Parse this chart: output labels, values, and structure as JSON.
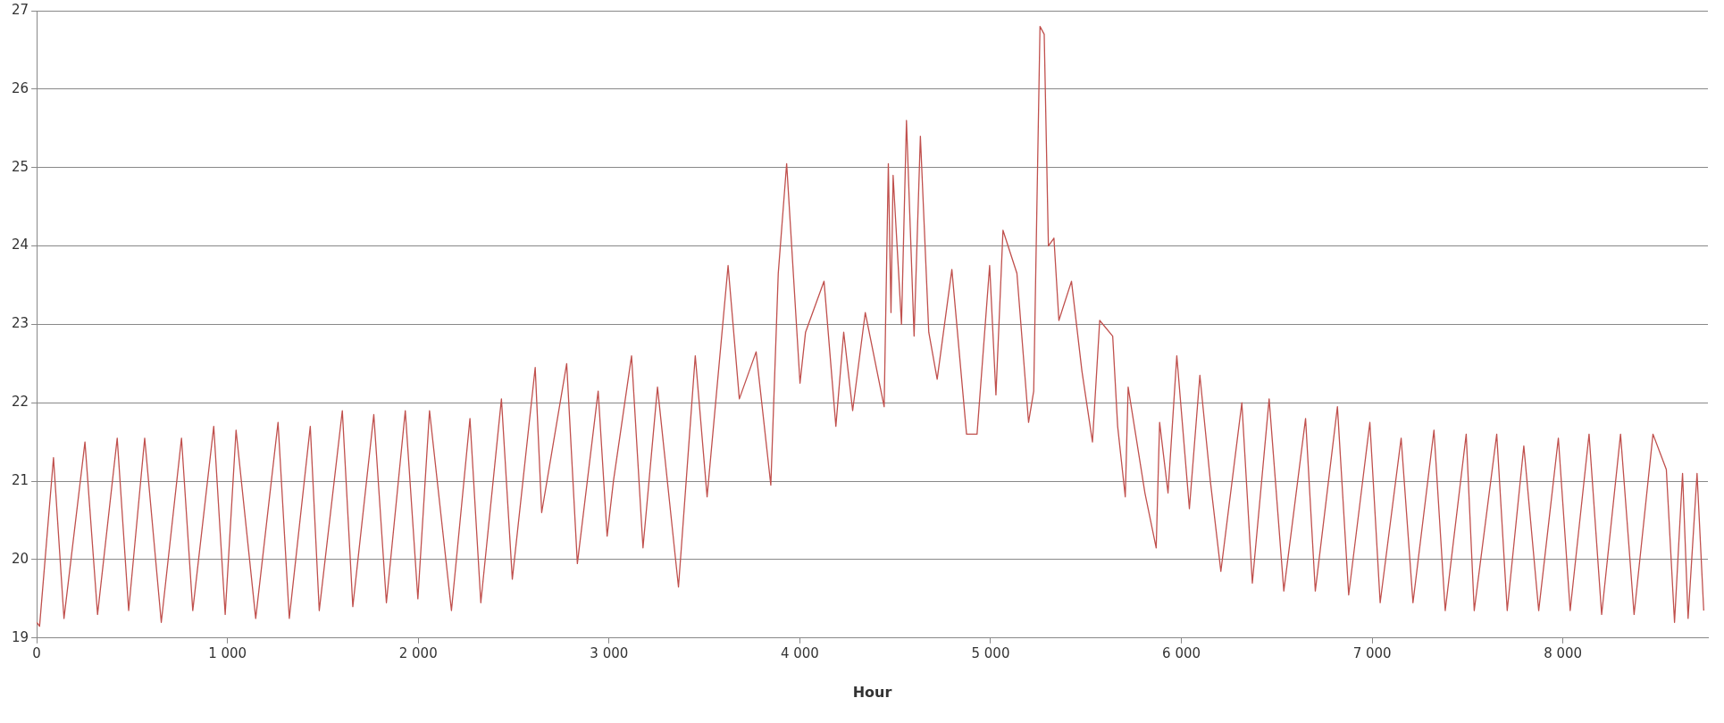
{
  "chart_data": {
    "type": "line",
    "xlabel": "Hour",
    "xlim": [
      0,
      8760
    ],
    "xticks": [
      0,
      {
        "value": 1000,
        "label": "1 000"
      },
      {
        "value": 2000,
        "label": "2 000"
      },
      {
        "value": 3000,
        "label": "3 000"
      },
      {
        "value": 4000,
        "label": "4 000"
      },
      {
        "value": 5000,
        "label": "5 000"
      },
      {
        "value": 6000,
        "label": "6 000"
      },
      {
        "value": 7000,
        "label": "7 000"
      },
      {
        "value": 8000,
        "label": "8 000"
      }
    ],
    "ylim": [
      19,
      27
    ],
    "yticks": [
      19,
      20,
      21,
      22,
      23,
      24,
      25,
      26,
      27
    ],
    "grid": "y",
    "legend": false,
    "marker": "none",
    "line_style": "solid",
    "series": [
      {
        "color": "#c0504d",
        "x": [
          0,
          15,
          88,
          143,
          253,
          319,
          422,
          482,
          566,
          653,
          759,
          818,
          928,
          988,
          1045,
          1148,
          1265,
          1324,
          1434,
          1481,
          1602,
          1657,
          1767,
          1833,
          1932,
          1998,
          2059,
          2174,
          2271,
          2328,
          2436,
          2493,
          2613,
          2647,
          2778,
          2834,
          2943,
          2990,
          3023,
          3118,
          3178,
          3254,
          3364,
          3452,
          3514,
          3624,
          3683,
          3771,
          3848,
          3887,
          3931,
          4001,
          4030,
          4127,
          4189,
          4230,
          4277,
          4343,
          4442,
          4464,
          4478,
          4489,
          4533,
          4559,
          4599,
          4632,
          4676,
          4720,
          4797,
          4874,
          4929,
          4995,
          5028,
          5065,
          5138,
          5199,
          5226,
          5259,
          5281,
          5303,
          5332,
          5358,
          5424,
          5479,
          5534,
          5572,
          5640,
          5666,
          5706,
          5721,
          5809,
          5868,
          5886,
          5930,
          5976,
          6042,
          6097,
          6152,
          6207,
          6317,
          6372,
          6460,
          6537,
          6651,
          6702,
          6818,
          6877,
          6988,
          7042,
          7152,
          7214,
          7324,
          7383,
          7493,
          7535,
          7653,
          7708,
          7795,
          7873,
          7976,
          8038,
          8137,
          8203,
          8302,
          8373,
          8472,
          8542,
          8585,
          8627,
          8656,
          8703,
          8738
        ],
        "values": [
          19.2,
          19.15,
          21.3,
          19.25,
          21.5,
          19.3,
          21.55,
          19.35,
          21.55,
          19.2,
          21.55,
          19.35,
          21.7,
          19.3,
          21.65,
          19.25,
          21.75,
          19.25,
          21.7,
          19.35,
          21.9,
          19.4,
          21.85,
          19.45,
          21.9,
          19.5,
          21.9,
          19.35,
          21.8,
          19.45,
          22.05,
          19.75,
          22.45,
          20.6,
          22.5,
          19.95,
          22.15,
          20.3,
          21.0,
          22.6,
          20.15,
          22.2,
          19.65,
          22.6,
          20.8,
          23.75,
          22.05,
          22.65,
          20.95,
          23.65,
          25.05,
          22.25,
          22.9,
          23.55,
          21.7,
          22.9,
          21.9,
          23.15,
          21.95,
          25.05,
          23.15,
          24.9,
          23.0,
          25.6,
          22.85,
          25.4,
          22.9,
          22.3,
          23.7,
          21.6,
          21.6,
          23.75,
          22.1,
          24.2,
          23.65,
          21.75,
          22.15,
          26.8,
          26.7,
          24.0,
          24.1,
          23.05,
          23.55,
          22.4,
          21.5,
          23.05,
          22.85,
          21.7,
          20.8,
          22.2,
          20.85,
          20.15,
          21.75,
          20.85,
          22.6,
          20.65,
          22.35,
          21.0,
          19.85,
          22.0,
          19.7,
          22.05,
          19.6,
          21.8,
          19.6,
          21.95,
          19.55,
          21.75,
          19.45,
          21.55,
          19.45,
          21.65,
          19.35,
          21.6,
          19.35,
          21.6,
          19.35,
          21.45,
          19.35,
          21.55,
          19.35,
          21.6,
          19.3,
          21.6,
          19.3,
          21.6,
          21.15,
          19.2,
          21.1,
          19.25,
          21.1,
          19.35
        ]
      }
    ]
  }
}
